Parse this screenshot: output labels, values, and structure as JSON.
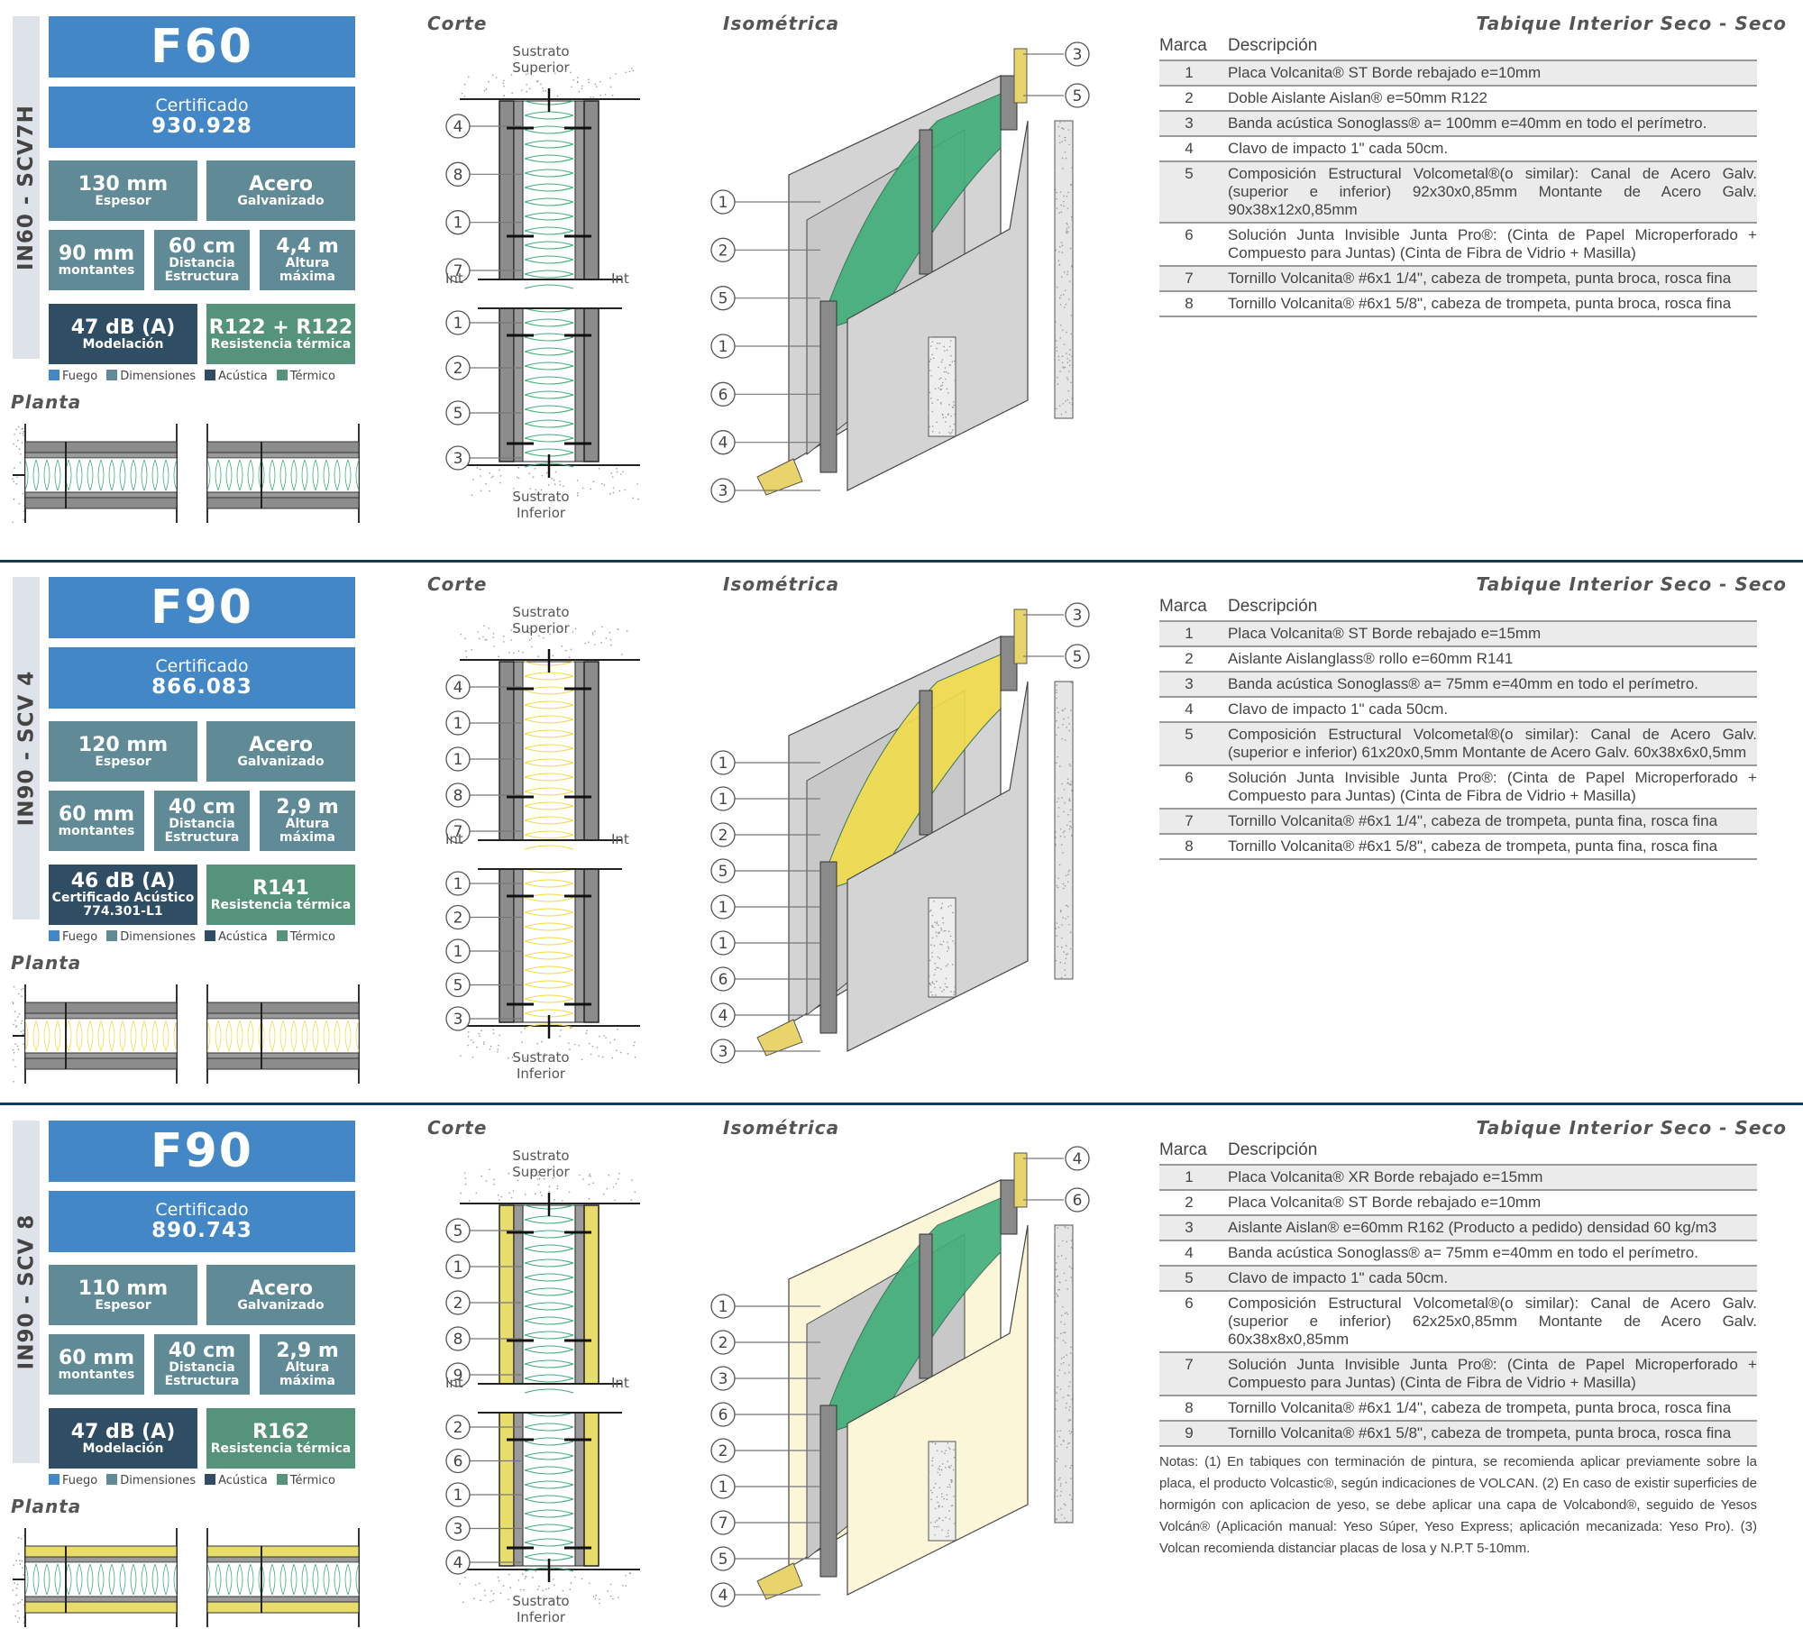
{
  "common": {
    "corte_title": "Corte",
    "isometrica_title": "Isométrica",
    "planta_title": "Planta",
    "type_title": "Tabique Interior Seco - Seco",
    "table_head_marca": "Marca",
    "table_head_desc": "Descripción",
    "sustrato_superior_1": "Sustrato",
    "sustrato_superior_2": "Superior",
    "sustrato_inferior_1": "Sustrato",
    "sustrato_inferior_2": "Inferior",
    "int_left": "Int",
    "int_right": "Int",
    "legend": [
      "Fuego",
      "Dimensiones",
      "Acústica",
      "Térmico"
    ],
    "legend_colors": {
      "fuego": "#4387c7",
      "dimensiones": "#5f8a96",
      "acustica": "#2f4d63",
      "termico": "#55937b"
    }
  },
  "panels": [
    {
      "code": "IN60 - SCV7H",
      "fire_rating": "F60",
      "cert_label": "Certificado",
      "cert_number": "930.928",
      "thickness": {
        "value": "130 mm",
        "label": "Espesor"
      },
      "material": {
        "value": "Acero",
        "label": "Galvanizado"
      },
      "studs": {
        "value": "90 mm",
        "label": "montantes"
      },
      "spacing": {
        "value": "60 cm",
        "label1": "Distancia",
        "label2": "Estructura"
      },
      "height": {
        "value": "4,4 m",
        "label1": "Altura",
        "label2": "máxima"
      },
      "acoustic": {
        "value": "47 dB (A)",
        "label1": "Modelación",
        "label2": ""
      },
      "thermal": {
        "value": "R122 + R122",
        "label": "Resistencia térmica"
      },
      "insulation_color": "#3fae7a",
      "corte_callouts": [
        "4",
        "8",
        "1",
        "7",
        "1",
        "2",
        "5",
        "3"
      ],
      "iso_callouts_left": [
        "1",
        "2",
        "5",
        "1",
        "6",
        "4",
        "3"
      ],
      "iso_callouts_right": [
        "3",
        "5"
      ],
      "rows": [
        {
          "marca": "1",
          "desc": "Placa Volcanita® ST Borde rebajado e=10mm"
        },
        {
          "marca": "2",
          "desc": "Doble Aislante Aislan® e=50mm R122"
        },
        {
          "marca": "3",
          "desc": "Banda acústica Sonoglass® a= 100mm e=40mm en todo el perímetro."
        },
        {
          "marca": "4",
          "desc": "Clavo de impacto 1\" cada 50cm."
        },
        {
          "marca": "5",
          "desc": "Composición Estructural Volcometal®(o similar): Canal de Acero Galv. (superior e inferior) 92x30x0,85mm Montante de Acero Galv. 90x38x12x0,85mm"
        },
        {
          "marca": "6",
          "desc": "Solución Junta Invisible Junta Pro®: (Cinta de Papel Microperforado + Compuesto para Juntas) (Cinta de Fibra de Vidrio + Masilla)"
        },
        {
          "marca": "7",
          "desc": "Tornillo Volcanita® #6x1 1/4\", cabeza de trompeta, punta broca, rosca fina"
        },
        {
          "marca": "8",
          "desc": "Tornillo Volcanita® #6x1 5/8\", cabeza de trompeta, punta broca, rosca fina"
        }
      ]
    },
    {
      "code": "IN90 - SCV 4",
      "fire_rating": "F90",
      "cert_label": "Certificado",
      "cert_number": "866.083",
      "thickness": {
        "value": "120 mm",
        "label": "Espesor"
      },
      "material": {
        "value": "Acero",
        "label": "Galvanizado"
      },
      "studs": {
        "value": "60 mm",
        "label": "montantes"
      },
      "spacing": {
        "value": "40 cm",
        "label1": "Distancia",
        "label2": "Estructura"
      },
      "height": {
        "value": "2,9 m",
        "label1": "Altura",
        "label2": "máxima"
      },
      "acoustic": {
        "value": "46 dB (A)",
        "label1": "Certificado Acústico",
        "label2": "774.301-L1"
      },
      "thermal": {
        "value": "R141",
        "label": "Resistencia térmica"
      },
      "insulation_color": "#f2dc4a",
      "corte_callouts": [
        "4",
        "1",
        "1",
        "8",
        "7",
        "1",
        "2",
        "1",
        "5",
        "3"
      ],
      "iso_callouts_left": [
        "1",
        "1",
        "2",
        "5",
        "1",
        "1",
        "6",
        "4",
        "3"
      ],
      "iso_callouts_right": [
        "3",
        "5"
      ],
      "rows": [
        {
          "marca": "1",
          "desc": "Placa Volcanita® ST Borde rebajado e=15mm"
        },
        {
          "marca": "2",
          "desc": "Aislante Aislanglass® rollo e=60mm R141"
        },
        {
          "marca": "3",
          "desc": "Banda acústica Sonoglass® a= 75mm e=40mm en todo el perímetro."
        },
        {
          "marca": "4",
          "desc": "Clavo de impacto 1\" cada 50cm."
        },
        {
          "marca": "5",
          "desc": "Composición Estructural Volcometal®(o similar): Canal de Acero Galv. (superior e inferior) 61x20x0,5mm Montante de Acero Galv. 60x38x6x0,5mm"
        },
        {
          "marca": "6",
          "desc": "Solución Junta Invisible Junta Pro®: (Cinta de Papel Microperforado + Compuesto para Juntas) (Cinta de Fibra de Vidrio + Masilla)"
        },
        {
          "marca": "7",
          "desc": "Tornillo Volcanita® #6x1 1/4\", cabeza de trompeta, punta fina, rosca fina"
        },
        {
          "marca": "8",
          "desc": "Tornillo Volcanita® #6x1 5/8\", cabeza de trompeta, punta fina, rosca fina"
        }
      ]
    },
    {
      "code": "IN90 - SCV 8",
      "fire_rating": "F90",
      "cert_label": "Certificado",
      "cert_number": "890.743",
      "thickness": {
        "value": "110 mm",
        "label": "Espesor"
      },
      "material": {
        "value": "Acero",
        "label": "Galvanizado"
      },
      "studs": {
        "value": "60 mm",
        "label": "montantes"
      },
      "spacing": {
        "value": "40 cm",
        "label1": "Distancia",
        "label2": "Estructura"
      },
      "height": {
        "value": "2,9 m",
        "label1": "Altura",
        "label2": "máxima"
      },
      "acoustic": {
        "value": "47 dB (A)",
        "label1": "Modelación",
        "label2": ""
      },
      "thermal": {
        "value": "R162",
        "label": "Resistencia térmica"
      },
      "insulation_color": "#3fae7a",
      "corte_callouts": [
        "5",
        "1",
        "2",
        "8",
        "9",
        "2",
        "6",
        "1",
        "3",
        "4"
      ],
      "iso_callouts_left": [
        "1",
        "2",
        "3",
        "6",
        "2",
        "1",
        "7",
        "5",
        "4"
      ],
      "iso_callouts_right": [
        "4",
        "6"
      ],
      "rows": [
        {
          "marca": "1",
          "desc": "Placa Volcanita® XR Borde rebajado e=15mm"
        },
        {
          "marca": "2",
          "desc": "Placa Volcanita® ST Borde rebajado e=10mm"
        },
        {
          "marca": "3",
          "desc": "Aislante Aislan®  e=60mm R162 (Producto a pedido) densidad 60 kg/m3"
        },
        {
          "marca": "4",
          "desc": "Banda acústica Sonoglass® a= 75mm e=40mm en todo el perímetro."
        },
        {
          "marca": "5",
          "desc": "Clavo de impacto 1\" cada 50cm."
        },
        {
          "marca": "6",
          "desc": "Composición Estructural Volcometal®(o similar): Canal de Acero Galv. (superior e inferior) 62x25x0,85mm Montante de Acero Galv. 60x38x8x0,85mm"
        },
        {
          "marca": "7",
          "desc": "Solución Junta Invisible Junta Pro®: (Cinta de Papel Microperforado + Compuesto para Juntas) (Cinta de Fibra de Vidrio + Masilla)"
        },
        {
          "marca": "8",
          "desc": "Tornillo Volcanita® #6x1 1/4\", cabeza de trompeta, punta broca, rosca fina"
        },
        {
          "marca": "9",
          "desc": "Tornillo Volcanita® #6x1 5/8\", cabeza de trompeta, punta broca, rosca fina"
        }
      ],
      "notes": "Notas: (1) En tabiques con terminación de pintura, se recomienda aplicar previamente sobre la placa, el producto Volcastic®, según indicaciones de VOLCAN. (2) En caso de existir superficies de hormigón con aplicacion de yeso, se debe aplicar una capa de Volcabond®, seguido de Yesos Volcán® (Aplicación manual: Yeso Súper, Yeso Express; aplicación mecanizada: Yeso Pro). (3) Volcan recomienda distanciar placas de losa y N.P.T 5-10mm."
    }
  ]
}
